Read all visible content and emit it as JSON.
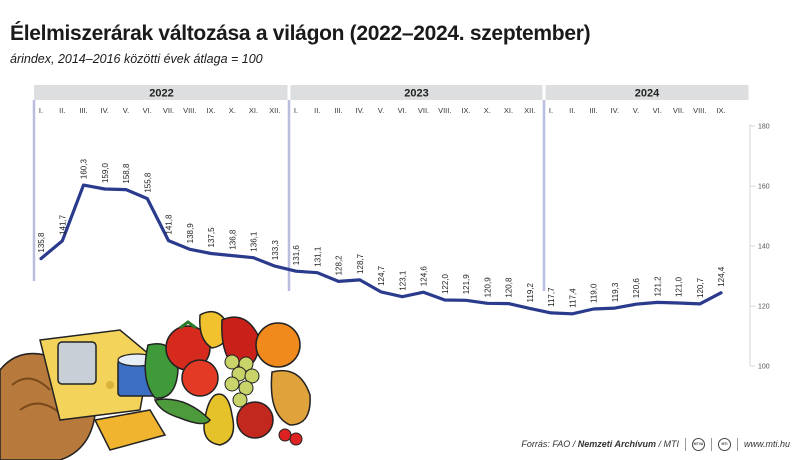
{
  "title": "Élelmiszerárak változása a világon (2022–2024. szeptember)",
  "subtitle": "árindex, 2014–2016 közötti évek átlaga = 100",
  "footer": {
    "source_prefix": "Forrás: FAO /",
    "source_bold": "Nemzeti Archívum",
    "source_suffix": "/ MTI",
    "logo1": "MTVA",
    "logo2": "MTI",
    "website": "www.mti.hu"
  },
  "chart_data": {
    "type": "line",
    "title": "Élelmiszerárak változása a világon (2022–2024. szeptember)",
    "subtitle": "árindex, 2014–2016 közötti évek átlaga = 100",
    "years": [
      {
        "label": "2022",
        "months": [
          "I.",
          "II.",
          "III.",
          "IV.",
          "V.",
          "VI.",
          "VII.",
          "VIII.",
          "IX.",
          "X.",
          "XI.",
          "XII."
        ]
      },
      {
        "label": "2023",
        "months": [
          "I.",
          "II.",
          "III.",
          "IV.",
          "V.",
          "VI.",
          "VII.",
          "VIII.",
          "IX.",
          "X.",
          "XI.",
          "XII."
        ]
      },
      {
        "label": "2024",
        "months": [
          "I.",
          "II.",
          "III.",
          "IV.",
          "V.",
          "VI.",
          "VII.",
          "VIII.",
          "IX."
        ]
      }
    ],
    "values": [
      135.8,
      141.7,
      160.3,
      159.0,
      158.8,
      155.8,
      141.8,
      138.9,
      137.5,
      136.8,
      136.1,
      133.3,
      131.6,
      131.1,
      128.2,
      128.7,
      124.7,
      123.1,
      124.6,
      122.0,
      121.9,
      120.9,
      120.8,
      119.2,
      117.7,
      117.4,
      119.0,
      119.3,
      120.6,
      121.2,
      121.0,
      120.7,
      124.4
    ],
    "value_labels": [
      "135,8",
      "141,7",
      "160,3",
      "159,0",
      "158,8",
      "155,8",
      "141,8",
      "138,9",
      "137,5",
      "136,8",
      "136,1",
      "133,3",
      "131,6",
      "131,1",
      "128,2",
      "128,7",
      "124,7",
      "123,1",
      "124,6",
      "122,0",
      "121,9",
      "120,9",
      "120,8",
      "119,2",
      "117,7",
      "117,4",
      "119,0",
      "119,3",
      "120,6",
      "121,2",
      "121,0",
      "120,7",
      "124,4"
    ],
    "y_ticks": [
      100,
      120,
      140,
      160,
      180
    ],
    "ylim": [
      100,
      180
    ],
    "xlabel": "",
    "ylabel": "",
    "grid": false,
    "colors": {
      "line": "#2a3a8c",
      "year_band": "#dcdedf",
      "separator": "#b9bde0",
      "axis": "#d6d6d6"
    }
  }
}
